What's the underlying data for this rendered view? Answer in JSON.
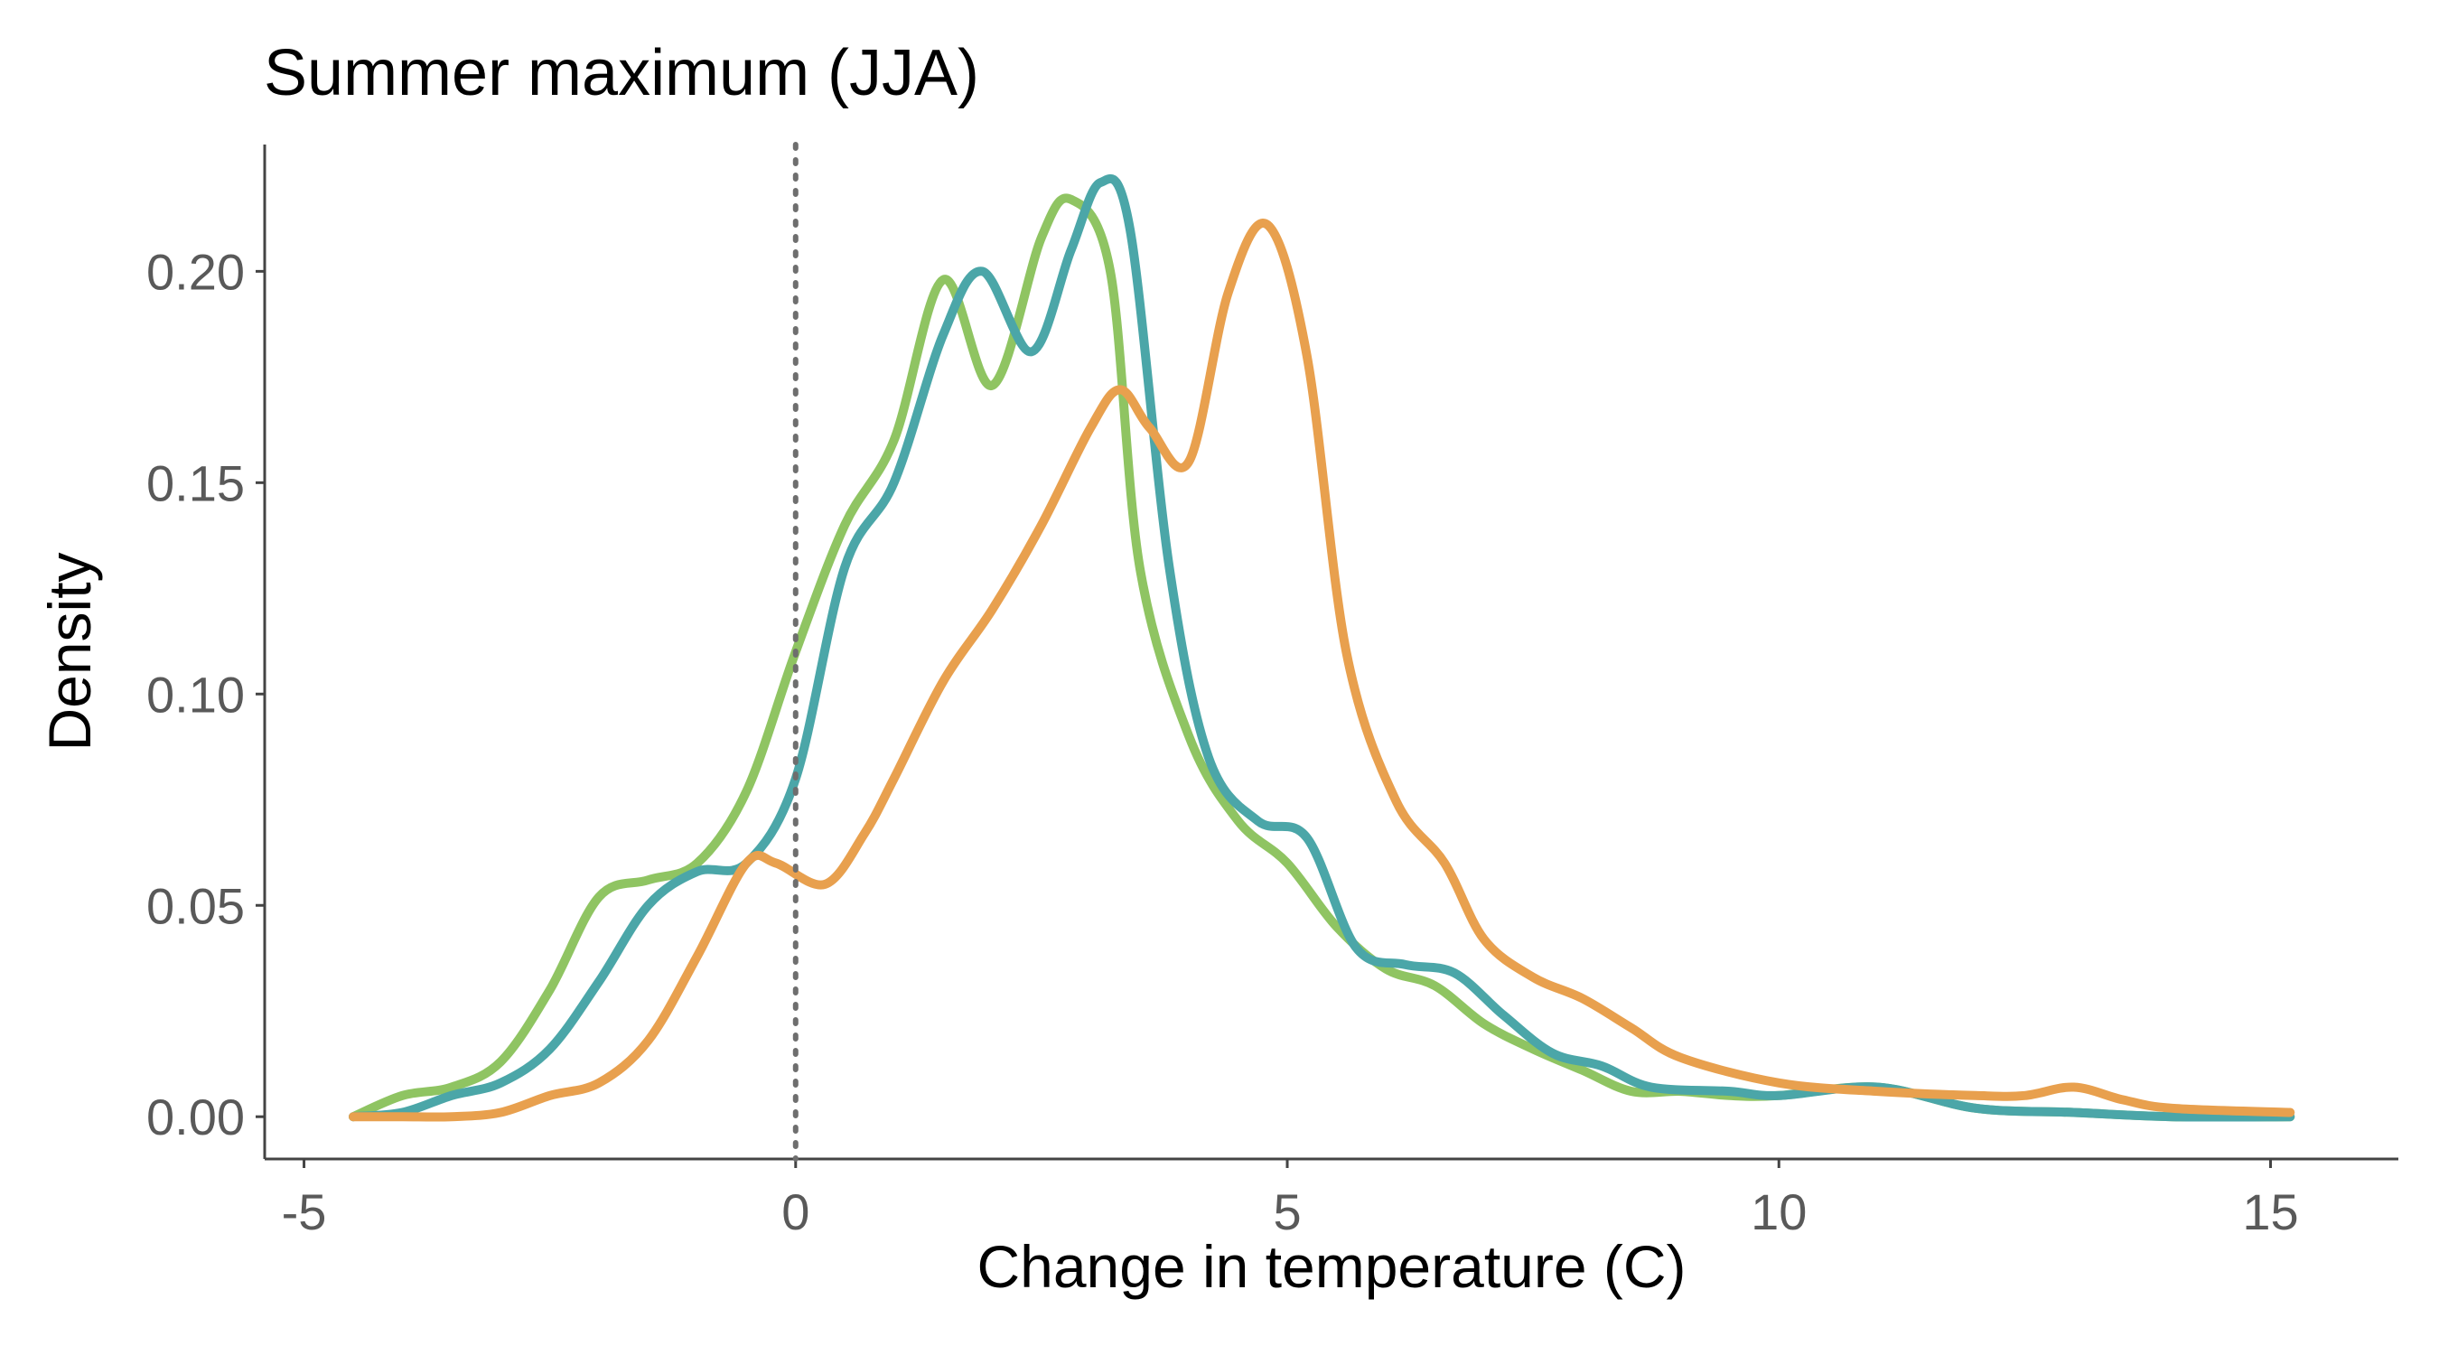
{
  "chart_data": {
    "type": "line",
    "title": "Summer maximum (JJA)",
    "xlabel": "Change in temperature (C)",
    "ylabel": "Density",
    "xlim": [
      -5.4,
      16.3
    ],
    "ylim": [
      -0.01,
      0.23
    ],
    "x_ticks": [
      -5,
      0,
      5,
      10,
      15
    ],
    "x_tick_labels": [
      "-5",
      "0",
      "5",
      "10",
      "15"
    ],
    "y_ticks": [
      0,
      0.05,
      0.1,
      0.15,
      0.2
    ],
    "y_tick_labels": [
      "0.00",
      "0.05",
      "0.10",
      "0.15",
      "0.20"
    ],
    "grid": false,
    "reference_line": {
      "x": 0,
      "style": "dotted"
    },
    "series": [
      {
        "color": "#8fc462",
        "x": [
          -4.5,
          -4,
          -3.5,
          -3,
          -2.5,
          -2,
          -1.5,
          -1,
          -0.5,
          0,
          0.5,
          1,
          1.5,
          2,
          2.5,
          2.8,
          3.2,
          3.5,
          4,
          4.5,
          5,
          5.5,
          6,
          6.5,
          7,
          7.5,
          8,
          8.5,
          9,
          9.5,
          10,
          11,
          12,
          13,
          14,
          15.2
        ],
        "y": [
          0.0,
          0.005,
          0.007,
          0.013,
          0.03,
          0.052,
          0.056,
          0.06,
          0.077,
          0.11,
          0.14,
          0.16,
          0.198,
          0.173,
          0.208,
          0.217,
          0.2,
          0.13,
          0.09,
          0.07,
          0.06,
          0.045,
          0.035,
          0.031,
          0.022,
          0.016,
          0.011,
          0.006,
          0.006,
          0.005,
          0.005,
          0.007,
          0.002,
          0.001,
          0.0,
          0.0
        ]
      },
      {
        "color": "#4ba6a8",
        "x": [
          -4.5,
          -4,
          -3.5,
          -3,
          -2.5,
          -2,
          -1.5,
          -1,
          -0.5,
          0,
          0.5,
          1,
          1.5,
          1.9,
          2.4,
          2.8,
          3.1,
          3.4,
          3.8,
          4.2,
          4.7,
          5.2,
          5.7,
          6.2,
          6.7,
          7.2,
          7.7,
          8.2,
          8.7,
          9.5,
          10,
          11,
          12,
          13,
          14,
          15.2
        ],
        "y": [
          0.0,
          0.001,
          0.005,
          0.008,
          0.016,
          0.032,
          0.05,
          0.058,
          0.06,
          0.08,
          0.13,
          0.15,
          0.185,
          0.2,
          0.181,
          0.205,
          0.221,
          0.21,
          0.13,
          0.085,
          0.07,
          0.066,
          0.04,
          0.036,
          0.034,
          0.024,
          0.015,
          0.012,
          0.007,
          0.006,
          0.005,
          0.007,
          0.002,
          0.001,
          0.0,
          0.0
        ]
      },
      {
        "color": "#e8a04e",
        "x": [
          -4.5,
          -4,
          -3.5,
          -3,
          -2.5,
          -2,
          -1.5,
          -1,
          -0.5,
          -0.2,
          0.3,
          0.7,
          1,
          1.5,
          2,
          2.5,
          3,
          3.3,
          3.6,
          4,
          4.4,
          4.8,
          5.2,
          5.6,
          6.1,
          6.6,
          7,
          7.5,
          8,
          8.5,
          9,
          10,
          11,
          12,
          12.5,
          13,
          13.5,
          14,
          15.2
        ],
        "y": [
          0.0,
          0.0,
          0.0,
          0.001,
          0.005,
          0.008,
          0.018,
          0.038,
          0.06,
          0.06,
          0.055,
          0.067,
          0.08,
          0.103,
          0.12,
          0.14,
          0.163,
          0.172,
          0.163,
          0.155,
          0.195,
          0.211,
          0.18,
          0.11,
          0.075,
          0.06,
          0.042,
          0.033,
          0.028,
          0.021,
          0.014,
          0.008,
          0.006,
          0.005,
          0.005,
          0.007,
          0.004,
          0.002,
          0.001
        ]
      }
    ]
  }
}
